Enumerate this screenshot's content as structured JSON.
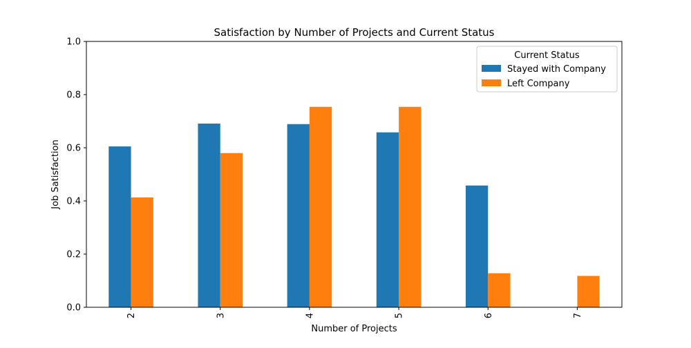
{
  "chart_data": {
    "type": "bar",
    "title": "Satisfaction by Number of Projects and Current Status",
    "xlabel": "Number of Projects",
    "ylabel": "Job Satisfaction",
    "categories": [
      "2",
      "3",
      "4",
      "5",
      "6",
      "7"
    ],
    "series": [
      {
        "name": "Stayed with Company",
        "color": "#1f77b4",
        "values": [
          0.605,
          0.691,
          0.689,
          0.658,
          0.458,
          null
        ]
      },
      {
        "name": "Left Company",
        "color": "#ff7f0e",
        "values": [
          0.413,
          0.58,
          0.754,
          0.754,
          0.128,
          0.118
        ]
      }
    ],
    "ylim": [
      0,
      1.0
    ],
    "yticks": [
      "0.0",
      "0.2",
      "0.4",
      "0.6",
      "0.8",
      "1.0"
    ],
    "legend": {
      "title": "Current Status",
      "placement": "top-right"
    },
    "grid": false
  }
}
